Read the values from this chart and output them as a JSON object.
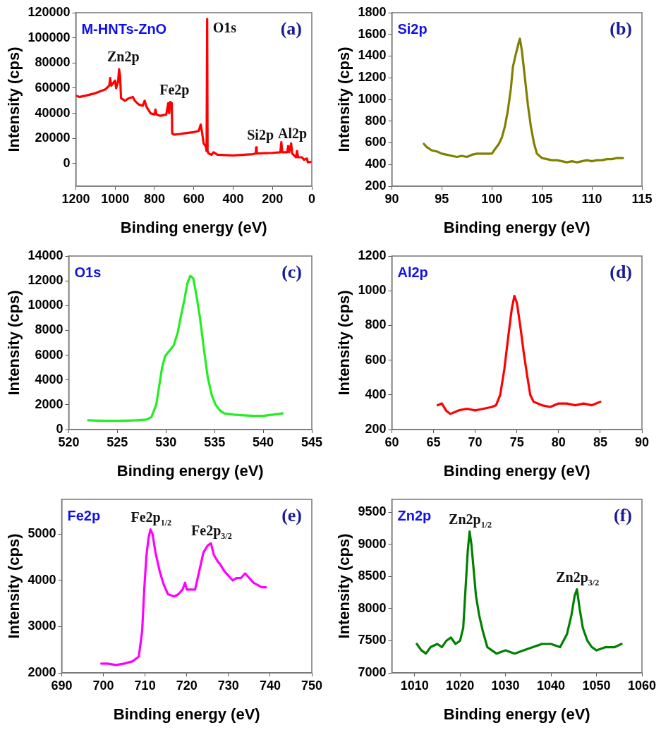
{
  "chart_data": [
    {
      "type": "line",
      "xlabel": "Binding energy (eV)",
      "ylabel": "Intensity (cps)",
      "xlim": [
        1200,
        0
      ],
      "xticks": [
        1200,
        1000,
        800,
        600,
        400,
        200,
        0
      ],
      "ylim": [
        -18000,
        120000
      ],
      "yticks": [
        0,
        20000,
        40000,
        60000,
        80000,
        100000,
        120000
      ],
      "x": [
        1200,
        1180,
        1150,
        1100,
        1050,
        1030,
        1025,
        1020,
        1010,
        1000,
        995,
        985,
        980,
        975,
        970,
        950,
        930,
        910,
        900,
        880,
        860,
        850,
        840,
        820,
        800,
        795,
        790,
        770,
        740,
        730,
        725,
        720,
        712,
        710,
        700,
        650,
        600,
        575,
        565,
        560,
        550,
        540,
        535,
        532,
        530,
        525,
        510,
        500,
        480,
        400,
        300,
        285,
        283,
        280,
        200,
        160,
        155,
        150,
        125,
        120,
        115,
        105,
        100,
        80,
        75,
        70,
        50,
        40,
        25,
        20,
        0
      ],
      "series": [
        {
          "color": "#ff0000",
          "values": [
            54000,
            53000,
            54000,
            56000,
            59000,
            62000,
            68000,
            62000,
            64000,
            66000,
            60000,
            65000,
            75000,
            70000,
            52000,
            50000,
            52000,
            53000,
            50000,
            47000,
            46000,
            50000,
            45000,
            40000,
            39000,
            43000,
            39000,
            38000,
            39000,
            48000,
            40000,
            49000,
            48000,
            24000,
            23000,
            24000,
            25000,
            26000,
            31000,
            27000,
            16000,
            14000,
            10000,
            115000,
            10000,
            8000,
            7000,
            9000,
            7000,
            6500,
            7500,
            8000,
            13000,
            8000,
            8500,
            9000,
            17000,
            9000,
            9000,
            14000,
            9000,
            16000,
            8000,
            5000,
            10000,
            5000,
            5000,
            3000,
            4000,
            1000,
            1500
          ]
        }
      ],
      "annotations": [
        "M-HNTs-ZnO",
        "(a)",
        {
          "text": "Zn2p",
          "x": 980,
          "y": 75000
        },
        {
          "text": "Fe2p",
          "x": 720,
          "y": 49000
        },
        {
          "text": "O1s",
          "x": 532,
          "y": 115000
        },
        {
          "text": "Si2p",
          "x": 283,
          "y": 13000
        },
        {
          "text": "Al2p",
          "x": 120,
          "y": 14000
        }
      ]
    },
    {
      "type": "line",
      "xlabel": "Binding energy (eV)",
      "ylabel": "Intensity (cps)",
      "xlim": [
        90,
        115
      ],
      "xticks": [
        90,
        95,
        100,
        105,
        110,
        115
      ],
      "ylim": [
        200,
        1800
      ],
      "yticks": [
        200,
        400,
        600,
        800,
        1000,
        1200,
        1400,
        1600,
        1800
      ],
      "x": [
        93.2,
        93.5,
        94,
        94.5,
        95,
        95.5,
        96,
        96.5,
        97,
        97.5,
        98,
        98.5,
        99,
        99.5,
        100,
        100.3,
        100.7,
        101,
        101.3,
        101.6,
        101.9,
        102.1,
        102.4,
        102.7,
        102.8,
        103,
        103.3,
        103.6,
        103.9,
        104.2,
        104.5,
        105,
        105.5,
        106,
        106.5,
        107,
        107.5,
        108,
        108.5,
        109,
        109.5,
        110,
        110.5,
        111,
        111.5,
        112,
        112.5,
        113.1
      ],
      "series": [
        {
          "color": "#808000",
          "values": [
            590,
            560,
            530,
            520,
            500,
            490,
            480,
            470,
            480,
            470,
            490,
            500,
            500,
            500,
            500,
            540,
            590,
            650,
            750,
            900,
            1100,
            1300,
            1420,
            1530,
            1560,
            1450,
            1200,
            950,
            750,
            600,
            500,
            460,
            450,
            440,
            440,
            430,
            420,
            430,
            420,
            430,
            440,
            430,
            440,
            440,
            450,
            450,
            460,
            460
          ]
        }
      ],
      "annotations": [
        "Si2p",
        "(b)"
      ]
    },
    {
      "type": "line",
      "xlabel": "Binding energy (eV)",
      "ylabel": "Intensity (cps)",
      "xlim": [
        520,
        545
      ],
      "xticks": [
        520,
        525,
        530,
        535,
        540,
        545
      ],
      "ylim": [
        0,
        14000
      ],
      "yticks": [
        0,
        2000,
        4000,
        6000,
        8000,
        10000,
        12000,
        14000
      ],
      "x": [
        522,
        523,
        524,
        525,
        526,
        527,
        528,
        528.5,
        529,
        529.3,
        529.6,
        529.9,
        530.3,
        530.8,
        531.2,
        531.5,
        531.9,
        532.2,
        532.5,
        532.8,
        533.1,
        533.5,
        533.9,
        534.3,
        534.7,
        535.1,
        535.6,
        536,
        537,
        538,
        539,
        540,
        541,
        542
      ],
      "series": [
        {
          "color": "#22ee22",
          "values": [
            750,
            720,
            700,
            700,
            720,
            750,
            800,
            1000,
            2000,
            3500,
            5000,
            5900,
            6300,
            6800,
            7800,
            9000,
            10500,
            11800,
            12400,
            12200,
            11000,
            9000,
            6500,
            4200,
            2800,
            2000,
            1500,
            1300,
            1200,
            1150,
            1100,
            1100,
            1200,
            1300
          ]
        }
      ],
      "annotations": [
        "O1s",
        "(c)"
      ]
    },
    {
      "type": "line",
      "xlabel": "Binding energy (eV)",
      "ylabel": "Intensity (cps)",
      "xlim": [
        60,
        90
      ],
      "xticks": [
        60,
        65,
        70,
        75,
        80,
        85,
        90
      ],
      "ylim": [
        200,
        1200
      ],
      "yticks": [
        200,
        400,
        600,
        800,
        1000,
        1200
      ],
      "x": [
        65.5,
        66,
        66.5,
        67,
        67.5,
        68,
        69,
        70,
        71,
        72,
        72.5,
        73,
        73.5,
        74,
        74.4,
        74.7,
        75,
        75.4,
        75.8,
        76.2,
        76.6,
        77,
        78,
        79,
        80,
        81,
        82,
        83,
        84,
        85
      ],
      "series": [
        {
          "color": "#ff0000",
          "values": [
            340,
            350,
            310,
            290,
            300,
            310,
            320,
            310,
            320,
            330,
            340,
            400,
            550,
            750,
            900,
            970,
            930,
            800,
            650,
            520,
            400,
            360,
            340,
            330,
            350,
            350,
            340,
            350,
            340,
            360
          ]
        }
      ],
      "annotations": [
        "Al2p",
        "(d)"
      ]
    },
    {
      "type": "line",
      "xlabel": "Binding energy (eV)",
      "ylabel": "Intensity (cps)",
      "xlim": [
        690,
        750
      ],
      "xticks": [
        690,
        700,
        710,
        720,
        730,
        740,
        750
      ],
      "ylim": [
        2000,
        5750
      ],
      "yticks": [
        2000,
        3000,
        4000,
        5000
      ],
      "x": [
        699.5,
        701,
        703,
        705,
        707,
        708.5,
        709.3,
        709.8,
        710.3,
        710.8,
        711.3,
        711.8,
        712.5,
        713.5,
        714.5,
        715.5,
        717,
        718,
        719,
        719.6,
        720,
        721,
        722,
        723,
        724,
        725,
        725.8,
        726.5,
        727.5,
        728,
        729,
        730,
        731,
        732,
        733,
        734,
        735,
        736,
        737,
        738,
        739
      ],
      "series": [
        {
          "color": "#ff00ff",
          "values": [
            2200,
            2200,
            2170,
            2200,
            2250,
            2350,
            2900,
            3800,
            4500,
            4900,
            5100,
            5000,
            4600,
            4200,
            3900,
            3700,
            3650,
            3700,
            3800,
            3950,
            3800,
            3800,
            3800,
            4200,
            4600,
            4750,
            4800,
            4550,
            4400,
            4350,
            4200,
            4100,
            4000,
            4050,
            4050,
            4150,
            4050,
            3950,
            3900,
            3850,
            3850
          ]
        }
      ],
      "annotations": [
        "Fe2p",
        "(e)",
        {
          "text": "Fe2p$_{1/2}$",
          "x": 711.3,
          "y": 5100
        },
        {
          "text": "Fe2p$_{3/2}$",
          "x": 725.8,
          "y": 4800
        }
      ]
    },
    {
      "type": "line",
      "xlabel": "Binding energy (eV)",
      "ylabel": "Intensity (cps)",
      "xlim": [
        1005,
        1060
      ],
      "xticks": [
        1010,
        1020,
        1030,
        1040,
        1050,
        1060
      ],
      "ylim": [
        7000,
        9700
      ],
      "yticks": [
        7000,
        7500,
        8000,
        8500,
        9000,
        9500
      ],
      "x": [
        1010.5,
        1011.5,
        1012.5,
        1013.5,
        1015,
        1016,
        1017,
        1018,
        1019,
        1020,
        1020.7,
        1021.2,
        1021.7,
        1022.1,
        1022.5,
        1023,
        1023.5,
        1024.2,
        1025,
        1026,
        1027,
        1028,
        1030,
        1032,
        1034,
        1036,
        1038,
        1040,
        1042,
        1043.5,
        1044.5,
        1045.2,
        1045.7,
        1046.3,
        1047,
        1048,
        1049,
        1050,
        1052,
        1054,
        1055.5
      ],
      "series": [
        {
          "color": "#008000",
          "values": [
            7450,
            7350,
            7300,
            7400,
            7450,
            7400,
            7500,
            7550,
            7450,
            7500,
            7700,
            8300,
            8900,
            9200,
            9000,
            8600,
            8200,
            7900,
            7650,
            7400,
            7350,
            7300,
            7350,
            7300,
            7350,
            7400,
            7450,
            7450,
            7400,
            7600,
            7900,
            8200,
            8300,
            8000,
            7700,
            7500,
            7400,
            7350,
            7400,
            7400,
            7450
          ]
        }
      ],
      "annotations": [
        "Zn2p",
        "(f)",
        {
          "text": "Zn2p$_{1/2}$",
          "x": 1022.1,
          "y": 9200
        },
        {
          "text": "Zn2p$_{3/2}$",
          "x": 1045.7,
          "y": 8300
        }
      ]
    }
  ]
}
